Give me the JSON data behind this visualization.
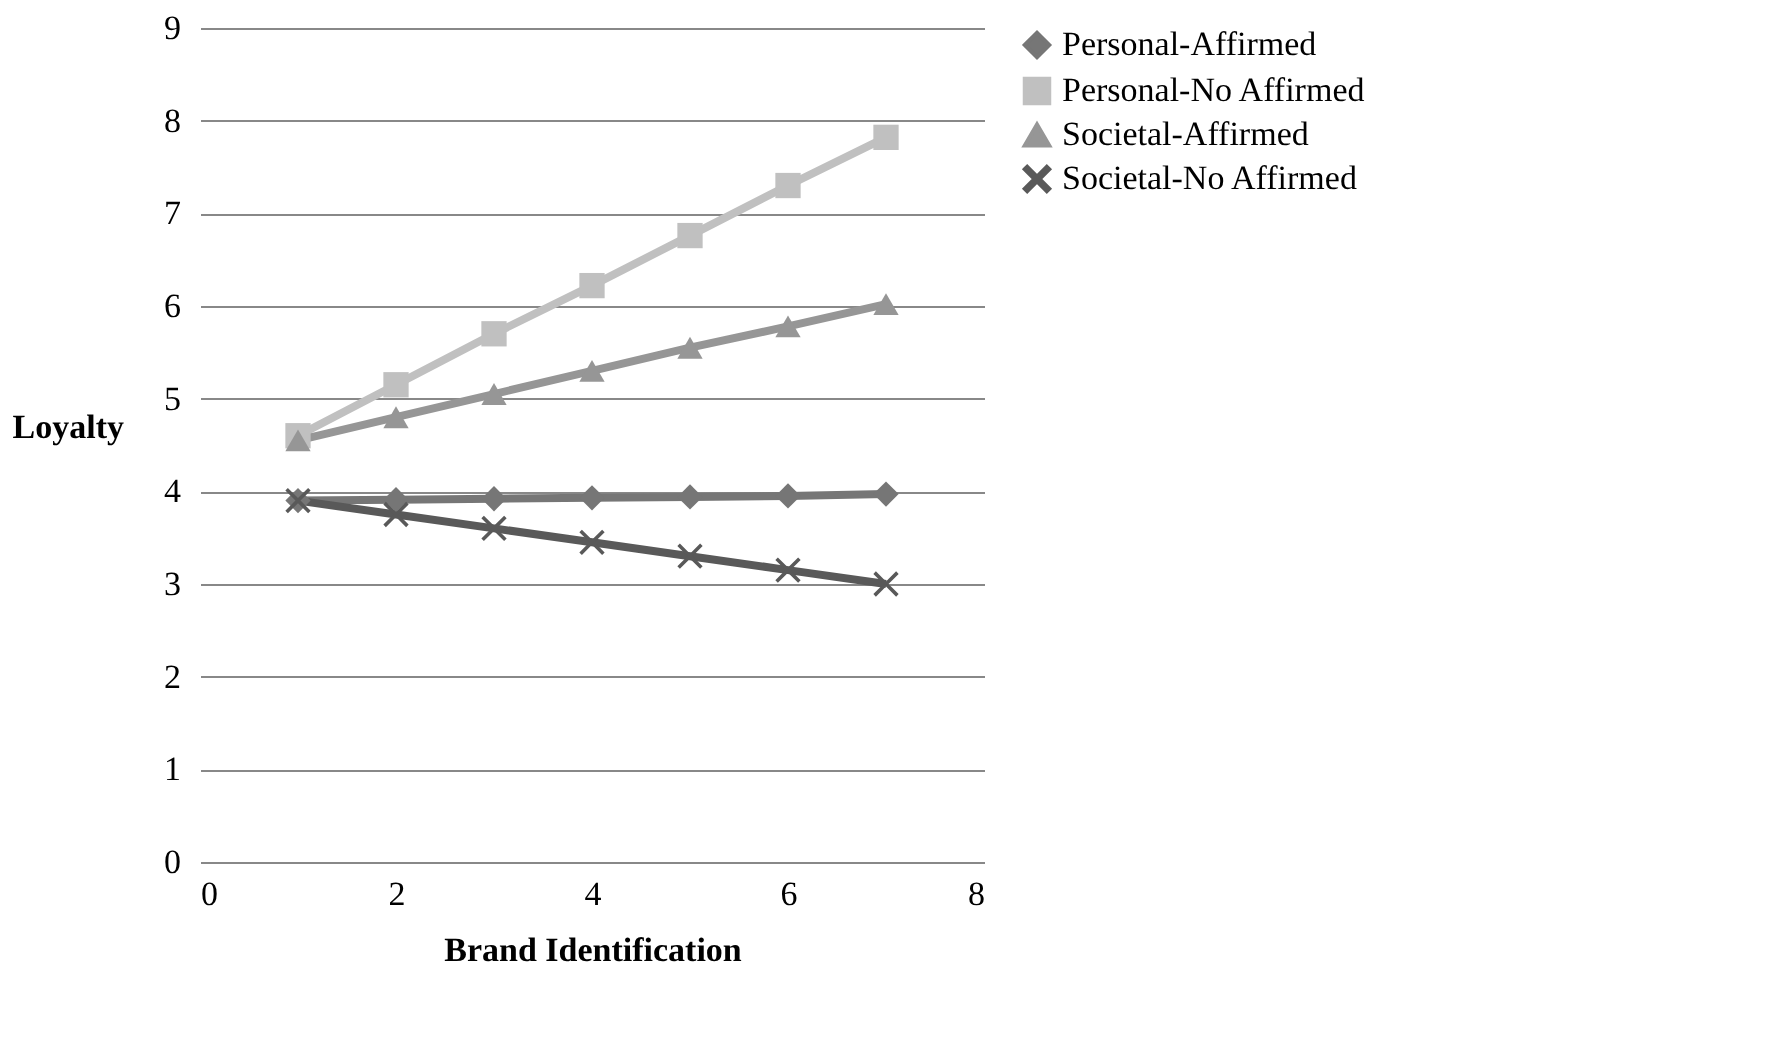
{
  "chart_data": {
    "type": "line",
    "xlabel": "Brand Identification",
    "ylabel": "Loyalty",
    "x": [
      1,
      2,
      3,
      4,
      5,
      6,
      7
    ],
    "series": [
      {
        "name": "Personal-Affirmed",
        "color": "#767676",
        "marker": "diamond",
        "values": [
          3.9,
          3.91,
          3.92,
          3.93,
          3.94,
          3.95,
          3.97
        ]
      },
      {
        "name": "Personal-No Affirmed",
        "color": "#c0c0c0",
        "marker": "square",
        "values": [
          4.6,
          5.15,
          5.7,
          6.22,
          6.76,
          7.3,
          7.82
        ]
      },
      {
        "name": "Societal-Affirmed",
        "color": "#969696",
        "marker": "triangle",
        "values": [
          4.55,
          4.8,
          5.05,
          5.3,
          5.55,
          5.78,
          6.02
        ]
      },
      {
        "name": "Societal-No Affirmed",
        "color": "#595959",
        "marker": "cross",
        "values": [
          3.9,
          3.75,
          3.6,
          3.45,
          3.3,
          3.15,
          3.0
        ]
      }
    ],
    "xlim": [
      0,
      8
    ],
    "xticks": [
      0,
      2,
      4,
      6,
      8
    ],
    "ylim": [
      0,
      9
    ],
    "yticks": [
      0,
      1,
      2,
      3,
      4,
      5,
      6,
      7,
      8,
      9
    ],
    "grid": "y",
    "legend": "right",
    "line_style": "solid"
  }
}
